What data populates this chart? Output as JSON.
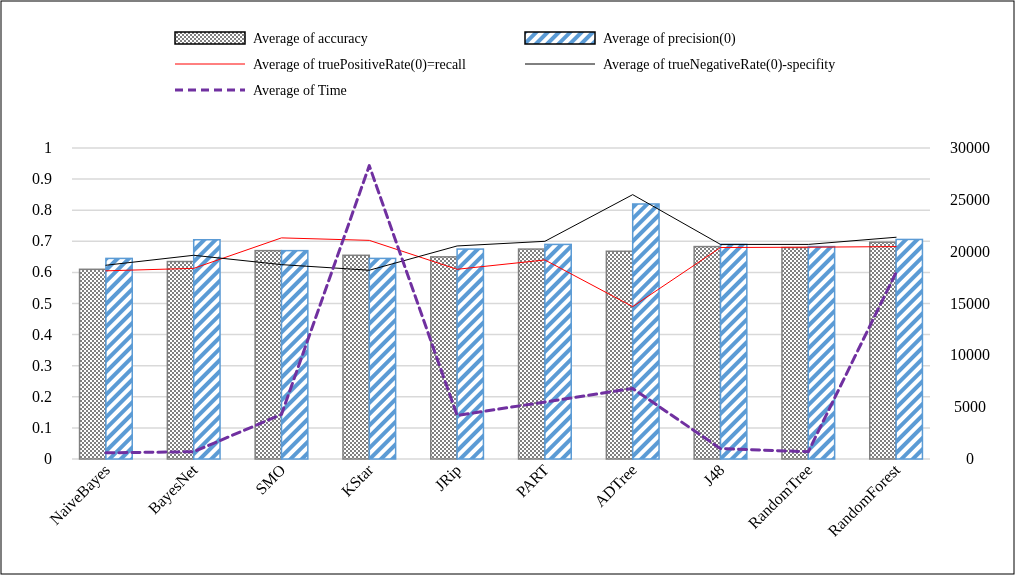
{
  "chart_data": {
    "type": "bar",
    "categories": [
      "NaiveBayes",
      "BayesNet",
      "SMO",
      "KStar",
      "JRip",
      "PART",
      "ADTree",
      "J48",
      "RandomTree",
      "RandomForest"
    ],
    "series": [
      {
        "name": "Average of accuracy",
        "color": "#808080",
        "values": [
          0.61,
          0.635,
          0.67,
          0.655,
          0.65,
          0.675,
          0.668,
          0.683,
          0.68,
          0.697
        ]
      },
      {
        "name": "Average of precision(0)",
        "color": "#5b9bd5",
        "values": [
          0.645,
          0.705,
          0.67,
          0.645,
          0.675,
          0.69,
          0.82,
          0.69,
          0.683,
          0.706
        ]
      },
      {
        "name": "Average of truePositiveRate(0)=recall",
        "type": "line",
        "color": "#ff0000",
        "line_style": "solid",
        "values": [
          0.605,
          0.613,
          0.711,
          0.703,
          0.61,
          0.64,
          0.49,
          0.68,
          0.681,
          0.683
        ]
      },
      {
        "name": "Average of trueNegativeRate(0)-specifity",
        "type": "line",
        "color": "#000000",
        "line_style": "solid",
        "values": [
          0.623,
          0.655,
          0.625,
          0.607,
          0.685,
          0.7,
          0.85,
          0.69,
          0.69,
          0.713
        ]
      },
      {
        "name": "Average of Time",
        "type": "line",
        "axis": "y2",
        "color": "#7030a0",
        "line_style": "dashed",
        "values": [
          600,
          700,
          4300,
          28300,
          4200,
          5500,
          6800,
          1000,
          700,
          18000
        ]
      }
    ],
    "ylim": [
      0,
      1
    ],
    "yticks": [
      0,
      0.1,
      0.2,
      0.3,
      0.4,
      0.5,
      0.6,
      0.7,
      0.8,
      0.9,
      1
    ],
    "y2lim": [
      0,
      30000
    ],
    "y2ticks": [
      0,
      5000,
      10000,
      15000,
      20000,
      25000,
      30000
    ],
    "grid": "y",
    "legend": "top"
  }
}
